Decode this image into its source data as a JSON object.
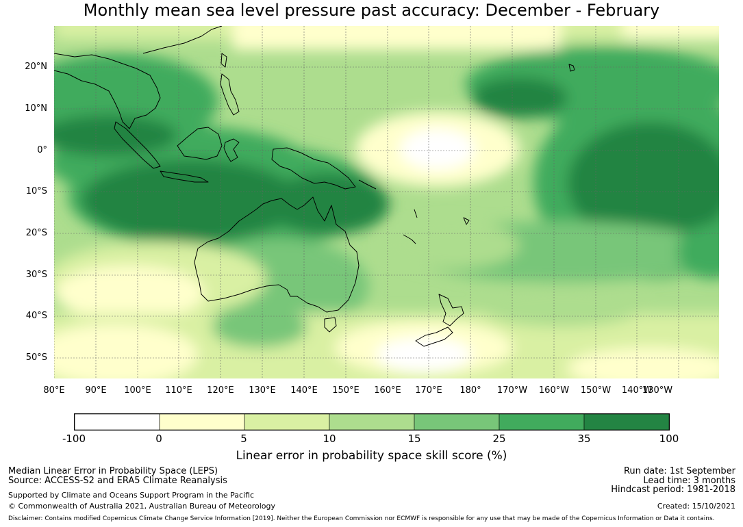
{
  "title": "Monthly mean sea level pressure past accuracy: December - February",
  "map": {
    "lat_labels": [
      "20°N",
      "10°N",
      "0°",
      "10°S",
      "20°S",
      "30°S",
      "40°S",
      "50°S"
    ],
    "lon_labels": [
      "80°E",
      "90°E",
      "100°E",
      "110°E",
      "120°E",
      "130°E",
      "140°E",
      "150°E",
      "160°E",
      "170°E",
      "180°",
      "170°W",
      "160°W",
      "150°W",
      "140°W",
      "130°W"
    ]
  },
  "colorbar": {
    "ticks": [
      "-100",
      "0",
      "5",
      "10",
      "15",
      "25",
      "35",
      "100"
    ],
    "colors": [
      "#ffffff",
      "#ffffcc",
      "#d9f0a3",
      "#addd8e",
      "#78c679",
      "#41ab5d",
      "#238443"
    ],
    "label": "Linear error in probability space skill score (%)"
  },
  "footer": {
    "left": {
      "line1": "Median Linear Error in Probability Space (LEPS)",
      "line2": "Source: ACCESS-S2 and ERA5 Climate Reanalysis",
      "line3": "Supported by Climate and Oceans Support Program in the Pacific",
      "line4": "© Commonwealth of Australia 2021, Australian Bureau of Meteorology"
    },
    "right": {
      "line1": "Run date: 1st September",
      "line2": "Lead time: 3 months",
      "line3": "Hindcast period: 1981-2018",
      "line4": "Created: 15/10/2021"
    },
    "disclaimer": "Disclaimer: Contains modified Copernicus Climate Change Service Information [2019]. Neither the European Commission nor ECMWF is responsible for any use that may be made of the Copernicus Information or Data it contains."
  }
}
